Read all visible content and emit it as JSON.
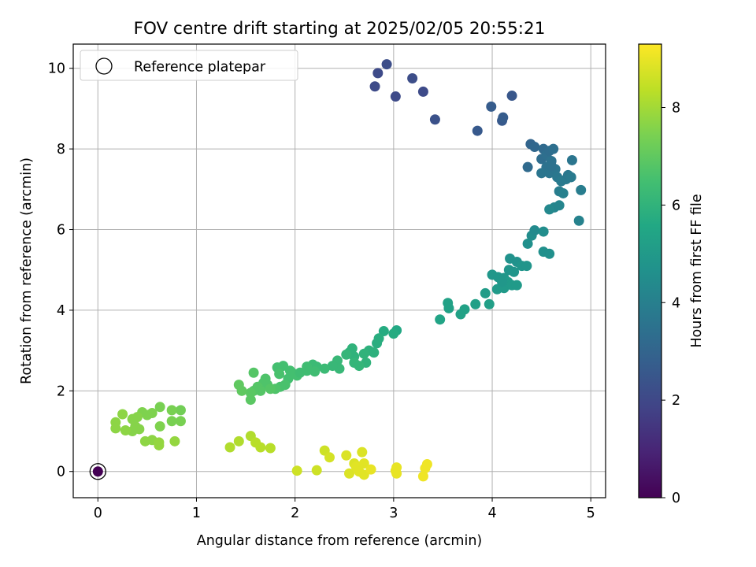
{
  "chart_data": {
    "type": "scatter",
    "title": "FOV centre drift starting at 2025/02/05 20:55:21",
    "xlabel": "Angular distance from reference (arcmin)",
    "ylabel": "Rotation from reference (arcmin)",
    "xlim": [
      -0.25,
      5.15
    ],
    "ylim": [
      -0.65,
      10.6
    ],
    "xticks": [
      0,
      1,
      2,
      3,
      4,
      5
    ],
    "yticks": [
      0,
      2,
      4,
      6,
      8,
      10
    ],
    "grid": true,
    "legend": {
      "position": "top-left",
      "entries": [
        "Reference platepar"
      ]
    },
    "colorbar": {
      "label": "Hours from first FF file",
      "range": [
        0,
        9.3
      ],
      "ticks": [
        0,
        2,
        4,
        6,
        8
      ],
      "colormap": "viridis"
    },
    "reference_point": {
      "x": 0,
      "y": 0,
      "hours": 0
    },
    "points": [
      [
        2.81,
        9.55,
        2.1
      ],
      [
        2.84,
        9.88,
        2.1
      ],
      [
        2.93,
        10.1,
        2.2
      ],
      [
        3.02,
        9.3,
        2.1
      ],
      [
        3.19,
        9.75,
        2.2
      ],
      [
        3.3,
        9.42,
        2.1
      ],
      [
        3.42,
        8.73,
        2.3
      ],
      [
        3.85,
        8.45,
        2.6
      ],
      [
        3.99,
        9.05,
        2.7
      ],
      [
        4.1,
        8.7,
        2.6
      ],
      [
        4.11,
        8.78,
        2.7
      ],
      [
        4.2,
        9.32,
        2.5
      ],
      [
        4.36,
        7.55,
        3.2
      ],
      [
        4.39,
        8.12,
        3.0
      ],
      [
        4.43,
        8.05,
        3.1
      ],
      [
        4.5,
        7.75,
        3.3
      ],
      [
        4.52,
        8.0,
        3.2
      ],
      [
        4.55,
        7.85,
        3.4
      ],
      [
        4.55,
        7.55,
        3.5
      ],
      [
        4.58,
        7.95,
        3.3
      ],
      [
        4.58,
        7.4,
        3.6
      ],
      [
        4.6,
        7.7,
        3.5
      ],
      [
        4.62,
        8.0,
        3.4
      ],
      [
        4.64,
        7.5,
        3.6
      ],
      [
        4.66,
        7.3,
        3.7
      ],
      [
        4.68,
        6.95,
        3.9
      ],
      [
        4.7,
        7.2,
        3.8
      ],
      [
        4.72,
        6.9,
        4.0
      ],
      [
        4.75,
        7.25,
        3.8
      ],
      [
        4.77,
        7.35,
        3.7
      ],
      [
        4.8,
        7.3,
        3.8
      ],
      [
        4.81,
        7.72,
        3.6
      ],
      [
        4.88,
        6.22,
        4.1
      ],
      [
        4.9,
        6.98,
        3.9
      ],
      [
        4.63,
        6.55,
        4.2
      ],
      [
        4.68,
        6.6,
        4.2
      ],
      [
        4.58,
        6.5,
        4.3
      ],
      [
        4.5,
        7.4,
        3.6
      ],
      [
        4.6,
        7.58,
        3.5
      ],
      [
        4.4,
        5.85,
        4.5
      ],
      [
        4.43,
        5.98,
        4.4
      ],
      [
        4.52,
        5.95,
        4.5
      ],
      [
        4.36,
        5.65,
        4.6
      ],
      [
        4.52,
        5.45,
        4.6
      ],
      [
        4.58,
        5.4,
        4.6
      ],
      [
        4.18,
        5.28,
        4.7
      ],
      [
        4.25,
        5.2,
        4.7
      ],
      [
        4.3,
        5.1,
        4.8
      ],
      [
        4.35,
        5.1,
        4.8
      ],
      [
        4.17,
        5.0,
        4.8
      ],
      [
        4.0,
        4.88,
        4.9
      ],
      [
        4.06,
        4.82,
        4.9
      ],
      [
        4.12,
        4.8,
        4.9
      ],
      [
        4.16,
        4.7,
        5.0
      ],
      [
        4.05,
        4.52,
        5.0
      ],
      [
        4.12,
        4.55,
        5.0
      ],
      [
        4.2,
        4.62,
        5.0
      ],
      [
        4.25,
        4.62,
        5.0
      ],
      [
        4.22,
        4.95,
        4.8
      ],
      [
        4.1,
        4.7,
        4.9
      ],
      [
        3.93,
        4.42,
        5.1
      ],
      [
        3.83,
        4.15,
        5.2
      ],
      [
        3.97,
        4.15,
        5.2
      ],
      [
        3.72,
        4.02,
        5.3
      ],
      [
        3.68,
        3.9,
        5.3
      ],
      [
        3.55,
        4.18,
        5.3
      ],
      [
        3.56,
        4.05,
        5.3
      ],
      [
        3.47,
        3.77,
        5.4
      ],
      [
        3.03,
        3.5,
        5.6
      ],
      [
        3.0,
        3.42,
        5.7
      ],
      [
        2.9,
        3.48,
        5.7
      ],
      [
        2.85,
        3.3,
        5.8
      ],
      [
        2.83,
        3.18,
        5.8
      ],
      [
        2.75,
        3.0,
        5.9
      ],
      [
        2.8,
        2.95,
        5.9
      ],
      [
        2.7,
        2.92,
        6.0
      ],
      [
        2.72,
        2.7,
        6.0
      ],
      [
        2.65,
        2.62,
        6.1
      ],
      [
        2.58,
        3.05,
        6.0
      ],
      [
        2.6,
        2.85,
        6.0
      ],
      [
        2.55,
        2.95,
        6.0
      ],
      [
        2.52,
        2.9,
        6.1
      ],
      [
        2.6,
        2.7,
        6.1
      ],
      [
        2.43,
        2.75,
        6.2
      ],
      [
        2.45,
        2.55,
        6.2
      ],
      [
        2.38,
        2.62,
        6.2
      ],
      [
        2.3,
        2.55,
        6.3
      ],
      [
        2.22,
        2.6,
        6.3
      ],
      [
        2.18,
        2.65,
        6.3
      ],
      [
        2.12,
        2.6,
        6.4
      ],
      [
        2.2,
        2.48,
        6.4
      ],
      [
        2.12,
        2.5,
        6.4
      ],
      [
        2.02,
        2.38,
        6.5
      ],
      [
        1.97,
        2.45,
        6.5
      ],
      [
        1.93,
        2.3,
        6.5
      ],
      [
        1.9,
        2.15,
        6.6
      ],
      [
        1.95,
        2.5,
        6.5
      ],
      [
        1.88,
        2.62,
        6.5
      ],
      [
        1.82,
        2.58,
        6.5
      ],
      [
        1.84,
        2.42,
        6.6
      ],
      [
        1.85,
        2.1,
        6.6
      ],
      [
        1.8,
        2.05,
        6.7
      ],
      [
        1.7,
        2.3,
        6.7
      ],
      [
        1.72,
        2.15,
        6.7
      ],
      [
        1.68,
        2.2,
        6.7
      ],
      [
        1.62,
        2.1,
        6.8
      ],
      [
        1.65,
        2.0,
        6.8
      ],
      [
        1.58,
        2.45,
        6.8
      ],
      [
        1.58,
        2.0,
        6.8
      ],
      [
        1.55,
        1.95,
        6.9
      ],
      [
        1.55,
        1.78,
        6.9
      ],
      [
        1.46,
        2.0,
        7.0
      ],
      [
        1.43,
        2.15,
        7.0
      ],
      [
        1.75,
        2.05,
        6.8
      ],
      [
        2.05,
        2.45,
        6.4
      ],
      [
        0.84,
        1.52,
        7.3
      ],
      [
        0.75,
        1.52,
        7.4
      ],
      [
        0.75,
        1.25,
        7.4
      ],
      [
        0.84,
        1.25,
        7.4
      ],
      [
        0.63,
        1.6,
        7.4
      ],
      [
        0.55,
        1.45,
        7.5
      ],
      [
        0.5,
        1.4,
        7.5
      ],
      [
        0.45,
        1.47,
        7.5
      ],
      [
        0.4,
        1.35,
        7.6
      ],
      [
        0.35,
        1.3,
        7.6
      ],
      [
        0.38,
        1.12,
        7.6
      ],
      [
        0.42,
        1.05,
        7.6
      ],
      [
        0.35,
        1.0,
        7.6
      ],
      [
        0.28,
        1.02,
        7.7
      ],
      [
        0.25,
        1.42,
        7.7
      ],
      [
        0.18,
        1.22,
        7.7
      ],
      [
        0.18,
        1.07,
        7.7
      ],
      [
        0.63,
        1.12,
        7.5
      ],
      [
        0.48,
        0.75,
        7.7
      ],
      [
        0.55,
        0.78,
        7.7
      ],
      [
        0.62,
        0.72,
        7.8
      ],
      [
        0.62,
        0.65,
        7.8
      ],
      [
        0.78,
        0.75,
        7.8
      ],
      [
        1.34,
        0.6,
        8.2
      ],
      [
        1.43,
        0.75,
        8.2
      ],
      [
        1.55,
        0.88,
        8.2
      ],
      [
        1.6,
        0.72,
        8.3
      ],
      [
        1.65,
        0.6,
        8.3
      ],
      [
        1.75,
        0.58,
        8.3
      ],
      [
        2.02,
        0.02,
        8.6
      ],
      [
        2.22,
        0.03,
        8.6
      ],
      [
        2.3,
        0.52,
        8.6
      ],
      [
        2.35,
        0.35,
        8.7
      ],
      [
        2.52,
        0.4,
        8.8
      ],
      [
        2.55,
        -0.05,
        8.8
      ],
      [
        2.6,
        0.2,
        8.8
      ],
      [
        2.62,
        0.12,
        8.9
      ],
      [
        2.65,
        0.0,
        8.9
      ],
      [
        2.68,
        0.48,
        8.8
      ],
      [
        2.7,
        0.2,
        8.9
      ],
      [
        2.7,
        -0.08,
        8.9
      ],
      [
        2.77,
        0.05,
        9.0
      ],
      [
        3.02,
        0.02,
        9.0
      ],
      [
        3.03,
        -0.05,
        9.0
      ],
      [
        3.03,
        0.1,
        9.0
      ],
      [
        3.3,
        -0.12,
        9.1
      ],
      [
        3.32,
        0.08,
        9.1
      ],
      [
        3.34,
        0.18,
        9.1
      ]
    ]
  }
}
